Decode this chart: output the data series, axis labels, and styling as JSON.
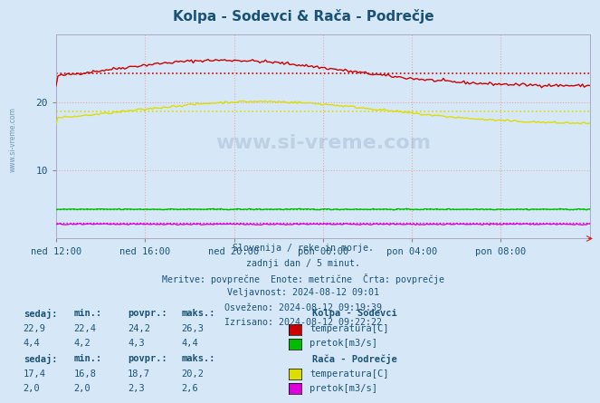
{
  "title": "Kolpa - Sodevci & Rača - Podrečje",
  "title_color": "#1a5276",
  "bg_color": "#d6e8f7",
  "plot_bg_color": "#d6e8f7",
  "xlim": [
    0,
    288
  ],
  "ylim": [
    0,
    30
  ],
  "yticks": [
    10,
    20
  ],
  "x_tick_positions": [
    0,
    48,
    96,
    144,
    192,
    240
  ],
  "x_tick_labels": [
    "ned 12:00",
    "ned 16:00",
    "ned 20:00",
    "pon 00:00",
    "pon 04:00",
    "pon 08:00"
  ],
  "grid_color": "#e8a8a8",
  "watermark": "www.si-vreme.com",
  "kolpa_temp_color": "#cc0000",
  "kolpa_pretok_color": "#00bb00",
  "raca_temp_color": "#dddd00",
  "raca_pretok_color": "#dd00dd",
  "kolpa_temp_avg": 24.2,
  "kolpa_temp_min": 22.4,
  "kolpa_temp_max": 26.3,
  "kolpa_temp_sedaj": 22.9,
  "kolpa_pretok_avg": 4.3,
  "kolpa_pretok_min": 4.2,
  "kolpa_pretok_max": 4.4,
  "kolpa_pretok_sedaj": 4.4,
  "raca_temp_avg": 18.7,
  "raca_temp_min": 16.8,
  "raca_temp_max": 20.2,
  "raca_temp_sedaj": 17.4,
  "raca_pretok_avg": 2.3,
  "raca_pretok_min": 2.0,
  "raca_pretok_max": 2.6,
  "raca_pretok_sedaj": 2.0,
  "text_color": "#1a5276",
  "subtitle_lines": [
    "Slovenija / reke in morje.",
    "zadnji dan / 5 minut.",
    "Meritve: povprečne  Enote: metrične  Črta: povprečje",
    "Veljavnost: 2024-08-12 09:01",
    "Osveženo: 2024-08-12 09:19:39",
    "Izrisano: 2024-08-12 09:22:22"
  ]
}
